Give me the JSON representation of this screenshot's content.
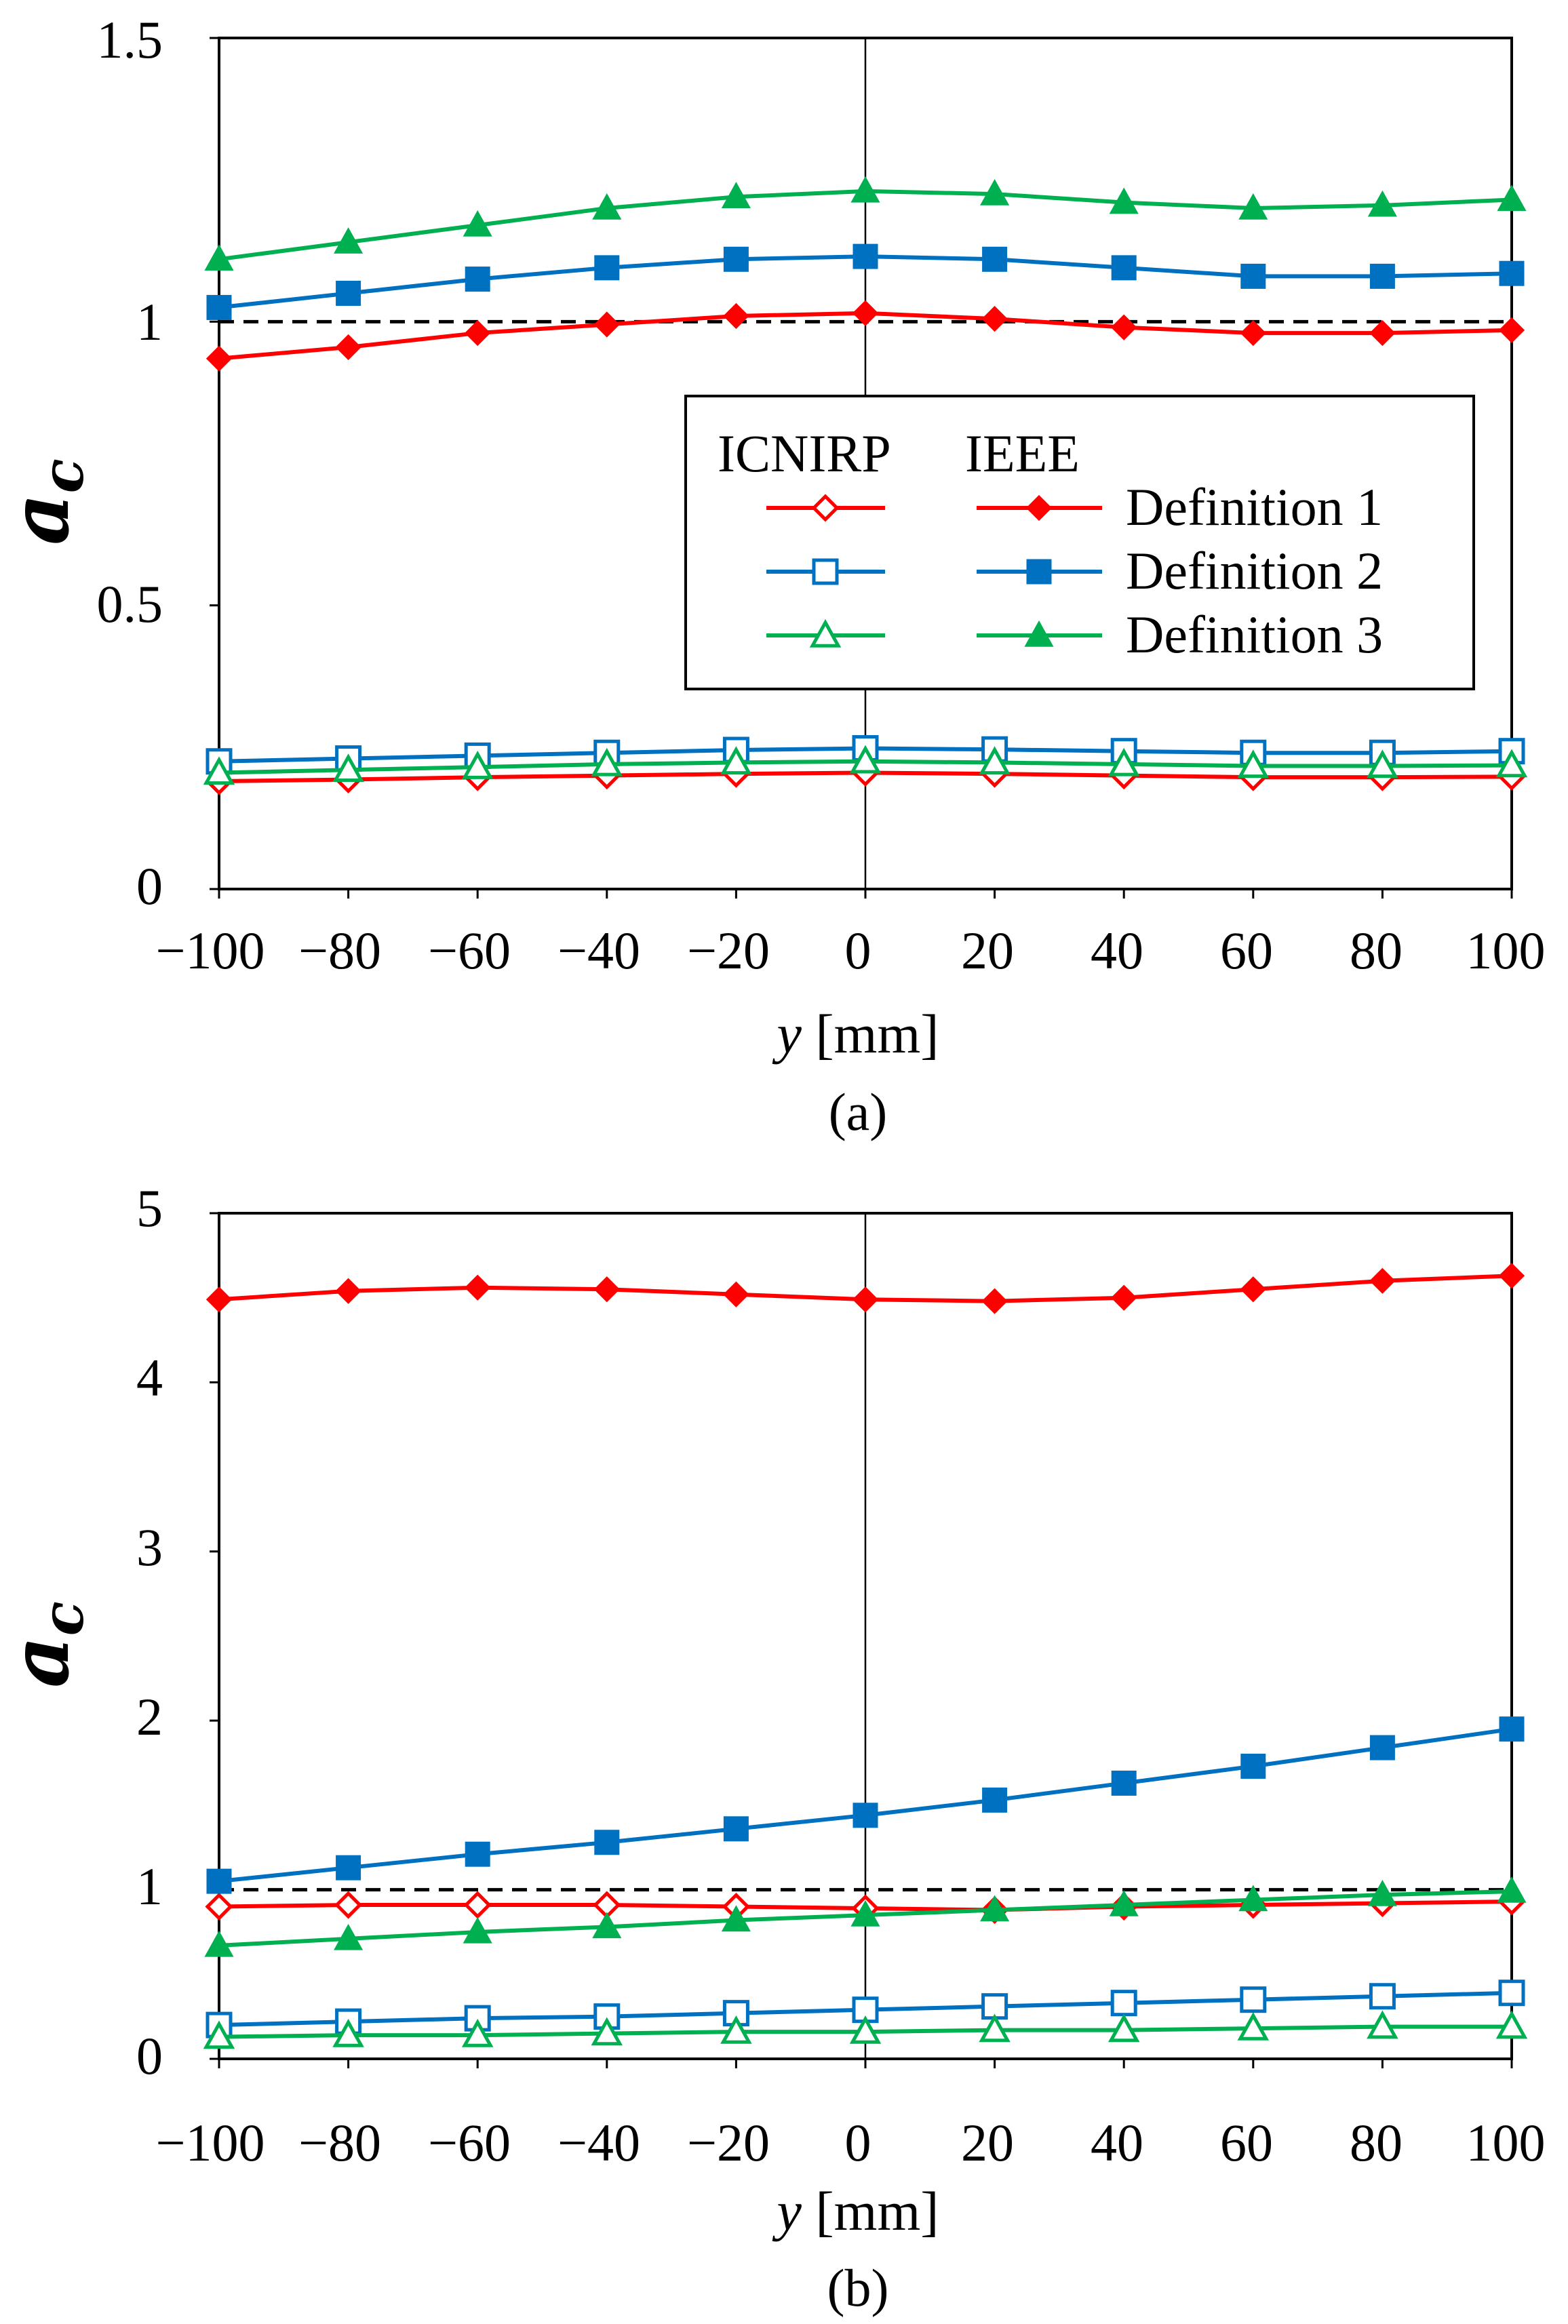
{
  "colors": {
    "red": "#fe0000",
    "blue": "#0070c0",
    "green": "#00b050"
  },
  "legend": {
    "header_icnirp": "ICNIRP",
    "header_ieee": "IEEE",
    "items": [
      {
        "label": "Definition 1",
        "color": "red",
        "marker": "diamond"
      },
      {
        "label": "Definition 2",
        "color": "blue",
        "marker": "square"
      },
      {
        "label": "Definition 3",
        "color": "green",
        "marker": "triangle"
      }
    ]
  },
  "chart_data": [
    {
      "type": "line",
      "subtitle": "(a)",
      "xlabel_var": "y",
      "xlabel_unit": " [mm]",
      "ylabel": "a",
      "ylabel_sub": "c",
      "x": [
        -100,
        -80,
        -60,
        -40,
        -20,
        0,
        20,
        40,
        60,
        80,
        100
      ],
      "x_tick_labels": [
        "−100",
        "−80",
        "−60",
        "−40",
        "−20",
        "0",
        "20",
        "40",
        "60",
        "80",
        "100"
      ],
      "xlim": [
        -100,
        100
      ],
      "ylim": [
        0,
        1.5
      ],
      "y_ticks": [
        0,
        0.5,
        1,
        1.5
      ],
      "y_tick_labels": [
        "0",
        "0.5",
        "1",
        "1.5"
      ],
      "reference_line": 1,
      "series": [
        {
          "name": "IEEE Definition 1",
          "color": "red",
          "marker": "diamond",
          "filled": true,
          "values": [
            0.935,
            0.955,
            0.98,
            0.995,
            1.01,
            1.015,
            1.005,
            0.99,
            0.98,
            0.98,
            0.985
          ]
        },
        {
          "name": "IEEE Definition 2",
          "color": "blue",
          "marker": "square",
          "filled": true,
          "values": [
            1.025,
            1.05,
            1.075,
            1.095,
            1.11,
            1.115,
            1.11,
            1.095,
            1.08,
            1.08,
            1.085
          ]
        },
        {
          "name": "IEEE Definition 3",
          "color": "green",
          "marker": "triangle",
          "filled": true,
          "values": [
            1.11,
            1.14,
            1.17,
            1.2,
            1.22,
            1.23,
            1.225,
            1.21,
            1.2,
            1.205,
            1.215
          ]
        },
        {
          "name": "ICNIRP Definition 1",
          "color": "red",
          "marker": "diamond",
          "filled": false,
          "values": [
            0.19,
            0.193,
            0.197,
            0.2,
            0.203,
            0.205,
            0.203,
            0.2,
            0.197,
            0.197,
            0.198
          ]
        },
        {
          "name": "ICNIRP Definition 2",
          "color": "blue",
          "marker": "square",
          "filled": false,
          "values": [
            0.225,
            0.23,
            0.235,
            0.24,
            0.245,
            0.248,
            0.246,
            0.243,
            0.24,
            0.24,
            0.243
          ]
        },
        {
          "name": "ICNIRP Definition 3",
          "color": "green",
          "marker": "triangle",
          "filled": false,
          "values": [
            0.205,
            0.21,
            0.215,
            0.22,
            0.223,
            0.225,
            0.223,
            0.22,
            0.217,
            0.217,
            0.218
          ]
        }
      ]
    },
    {
      "type": "line",
      "subtitle": "(b)",
      "xlabel_var": "y",
      "xlabel_unit": " [mm]",
      "ylabel": "a",
      "ylabel_sub": "c",
      "x": [
        -100,
        -80,
        -60,
        -40,
        -20,
        0,
        20,
        40,
        60,
        80,
        100
      ],
      "x_tick_labels": [
        "−100",
        "−80",
        "−60",
        "−40",
        "−20",
        "0",
        "20",
        "40",
        "60",
        "80",
        "100"
      ],
      "xlim": [
        -100,
        100
      ],
      "ylim": [
        0,
        5
      ],
      "y_ticks": [
        0,
        1,
        2,
        3,
        4,
        5
      ],
      "y_tick_labels": [
        "0",
        "1",
        "2",
        "3",
        "4",
        "5"
      ],
      "reference_line": 1,
      "series": [
        {
          "name": "IEEE Definition 1",
          "color": "red",
          "marker": "diamond",
          "filled": true,
          "values": [
            4.49,
            4.54,
            4.56,
            4.55,
            4.52,
            4.49,
            4.48,
            4.5,
            4.55,
            4.6,
            4.63
          ]
        },
        {
          "name": "IEEE Definition 2",
          "color": "blue",
          "marker": "square",
          "filled": true,
          "values": [
            1.05,
            1.13,
            1.21,
            1.28,
            1.36,
            1.44,
            1.53,
            1.63,
            1.73,
            1.84,
            1.95
          ]
        },
        {
          "name": "IEEE Definition 3",
          "color": "green",
          "marker": "triangle",
          "filled": true,
          "values": [
            0.67,
            0.71,
            0.75,
            0.78,
            0.82,
            0.85,
            0.88,
            0.91,
            0.94,
            0.97,
            0.99
          ]
        },
        {
          "name": "ICNIRP Definition 1",
          "color": "red",
          "marker": "diamond",
          "filled": false,
          "values": [
            0.9,
            0.91,
            0.91,
            0.91,
            0.9,
            0.89,
            0.88,
            0.9,
            0.91,
            0.92,
            0.93
          ]
        },
        {
          "name": "ICNIRP Definition 2",
          "color": "blue",
          "marker": "square",
          "filled": false,
          "values": [
            0.2,
            0.22,
            0.24,
            0.25,
            0.27,
            0.29,
            0.31,
            0.33,
            0.35,
            0.37,
            0.39
          ]
        },
        {
          "name": "ICNIRP Definition 3",
          "color": "green",
          "marker": "triangle",
          "filled": false,
          "values": [
            0.13,
            0.14,
            0.14,
            0.15,
            0.16,
            0.16,
            0.17,
            0.17,
            0.18,
            0.19,
            0.19
          ]
        }
      ]
    }
  ]
}
